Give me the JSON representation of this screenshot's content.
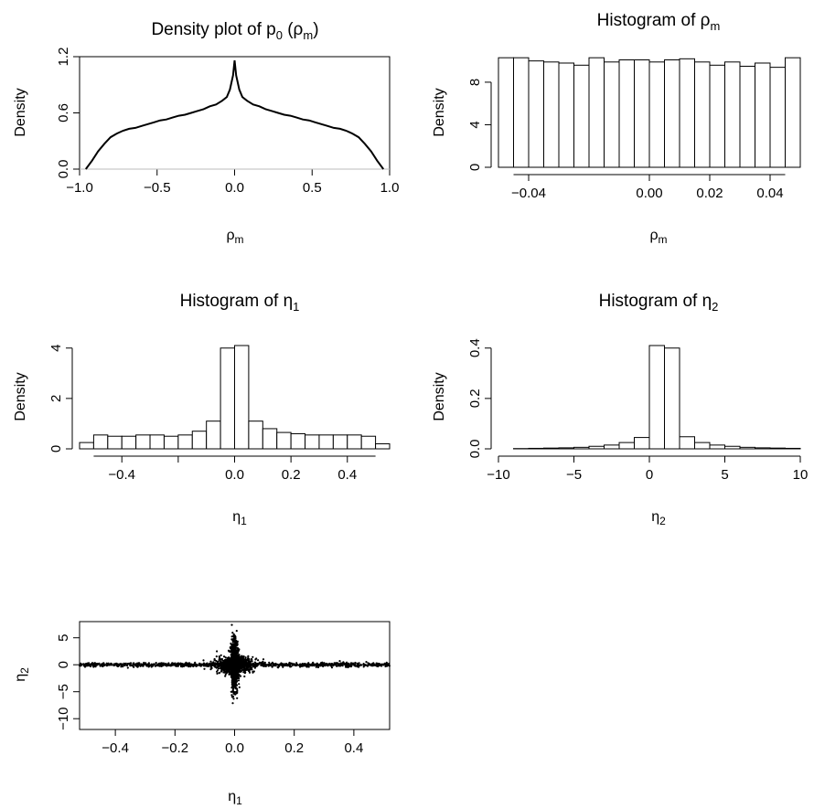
{
  "chart_data": [
    {
      "id": "density-rho",
      "type": "line",
      "title": "Density plot of p₀ (ρₘ)",
      "xlabel": "ρₘ",
      "ylabel": "Density",
      "xlim": [
        -1.0,
        1.0
      ],
      "ylim": [
        0.0,
        1.2
      ],
      "xticks": [
        -1.0,
        -0.5,
        0.0,
        0.5,
        1.0
      ],
      "yticks": [
        0.0,
        0.6,
        1.2
      ],
      "x": [
        -0.96,
        -0.92,
        -0.88,
        -0.84,
        -0.8,
        -0.76,
        -0.72,
        -0.68,
        -0.64,
        -0.6,
        -0.56,
        -0.52,
        -0.48,
        -0.44,
        -0.4,
        -0.36,
        -0.32,
        -0.28,
        -0.24,
        -0.2,
        -0.16,
        -0.12,
        -0.08,
        -0.05,
        -0.03,
        -0.01,
        0.0,
        0.01,
        0.03,
        0.05,
        0.08,
        0.12,
        0.16,
        0.2,
        0.24,
        0.28,
        0.32,
        0.36,
        0.4,
        0.44,
        0.48,
        0.52,
        0.56,
        0.6,
        0.64,
        0.68,
        0.72,
        0.76,
        0.8,
        0.84,
        0.88,
        0.92,
        0.96
      ],
      "y": [
        0.0,
        0.09,
        0.19,
        0.27,
        0.34,
        0.38,
        0.41,
        0.43,
        0.44,
        0.46,
        0.48,
        0.5,
        0.52,
        0.53,
        0.55,
        0.57,
        0.58,
        0.6,
        0.62,
        0.64,
        0.67,
        0.69,
        0.73,
        0.77,
        0.85,
        1.0,
        1.16,
        1.0,
        0.85,
        0.77,
        0.73,
        0.69,
        0.67,
        0.64,
        0.62,
        0.6,
        0.58,
        0.57,
        0.55,
        0.53,
        0.52,
        0.5,
        0.48,
        0.46,
        0.44,
        0.43,
        0.41,
        0.38,
        0.34,
        0.27,
        0.19,
        0.09,
        0.0
      ]
    },
    {
      "id": "hist-rho",
      "type": "bar",
      "title": "Histogram of ρₘ",
      "xlabel": "ρₘ",
      "ylabel": "Density",
      "bin_start": -0.05,
      "bin_width": 0.005,
      "values": [
        10.3,
        10.3,
        10.0,
        9.9,
        9.8,
        9.6,
        10.3,
        9.9,
        10.1,
        10.1,
        9.9,
        10.1,
        10.2,
        9.9,
        9.6,
        9.9,
        9.5,
        9.8,
        9.4,
        10.3
      ],
      "xlim": [
        -0.05,
        0.05
      ],
      "ylim": [
        0,
        10.4
      ],
      "xticks": [
        -0.04,
        0.0,
        0.02,
        0.04
      ],
      "xtick_labels": [
        "−0.04",
        "0.00",
        "0.02",
        "0.04"
      ],
      "x_axis_extent": [
        -0.045,
        0.045
      ],
      "yticks": [
        0,
        4,
        8
      ]
    },
    {
      "id": "hist-eta1",
      "type": "bar",
      "title": "Histogram of η₁",
      "xlabel": "η₁",
      "ylabel": "Density",
      "bin_start": -0.55,
      "bin_width": 0.05,
      "values": [
        0.25,
        0.55,
        0.5,
        0.5,
        0.55,
        0.55,
        0.5,
        0.55,
        0.7,
        1.1,
        4.0,
        4.1,
        1.1,
        0.8,
        0.65,
        0.6,
        0.55,
        0.55,
        0.55,
        0.55,
        0.5,
        0.2
      ],
      "xlim": [
        -0.55,
        0.55
      ],
      "ylim": [
        0,
        4.1
      ],
      "xticks": [
        -0.4,
        -0.2,
        0.0,
        0.2,
        0.4
      ],
      "xtick_labels": [
        "−0.4",
        "",
        "0.0",
        "0.2",
        "0.4"
      ],
      "x_axis_extent": [
        -0.5,
        0.5
      ],
      "yticks": [
        0,
        2,
        4
      ]
    },
    {
      "id": "hist-eta2",
      "type": "bar",
      "title": "Histogram of η₂",
      "xlabel": "η₂",
      "ylabel": "Density",
      "bin_start": -10,
      "bin_width": 1,
      "values": [
        0,
        0.001,
        0.002,
        0.003,
        0.004,
        0.006,
        0.01,
        0.015,
        0.025,
        0.045,
        0.41,
        0.4,
        0.048,
        0.025,
        0.015,
        0.01,
        0.006,
        0.004,
        0.003,
        0.002
      ],
      "xlim": [
        -10,
        10
      ],
      "ylim": [
        0,
        0.41
      ],
      "xticks": [
        -10,
        -5,
        0,
        5,
        10
      ],
      "xtick_labels": [
        "−10",
        "−5",
        "0",
        "5",
        "10"
      ],
      "yticks": [
        0.0,
        0.2,
        0.4
      ],
      "ytick_labels": [
        "0.0",
        "0.2",
        "0.4"
      ]
    },
    {
      "id": "scatter-eta",
      "type": "scatter",
      "xlabel": "η₁",
      "ylabel": "η₂",
      "xlim": [
        -0.52,
        0.52
      ],
      "ylim": [
        -12,
        8
      ],
      "xticks": [
        -0.4,
        -0.2,
        0.0,
        0.2,
        0.4
      ],
      "xtick_labels": [
        "−0.4",
        "−0.2",
        "0.0",
        "0.2",
        "0.4"
      ],
      "yticks": [
        -10,
        -5,
        0,
        5
      ],
      "ytick_labels": [
        "−10",
        "−5",
        "0",
        "5"
      ],
      "n_points": 3000
    }
  ]
}
